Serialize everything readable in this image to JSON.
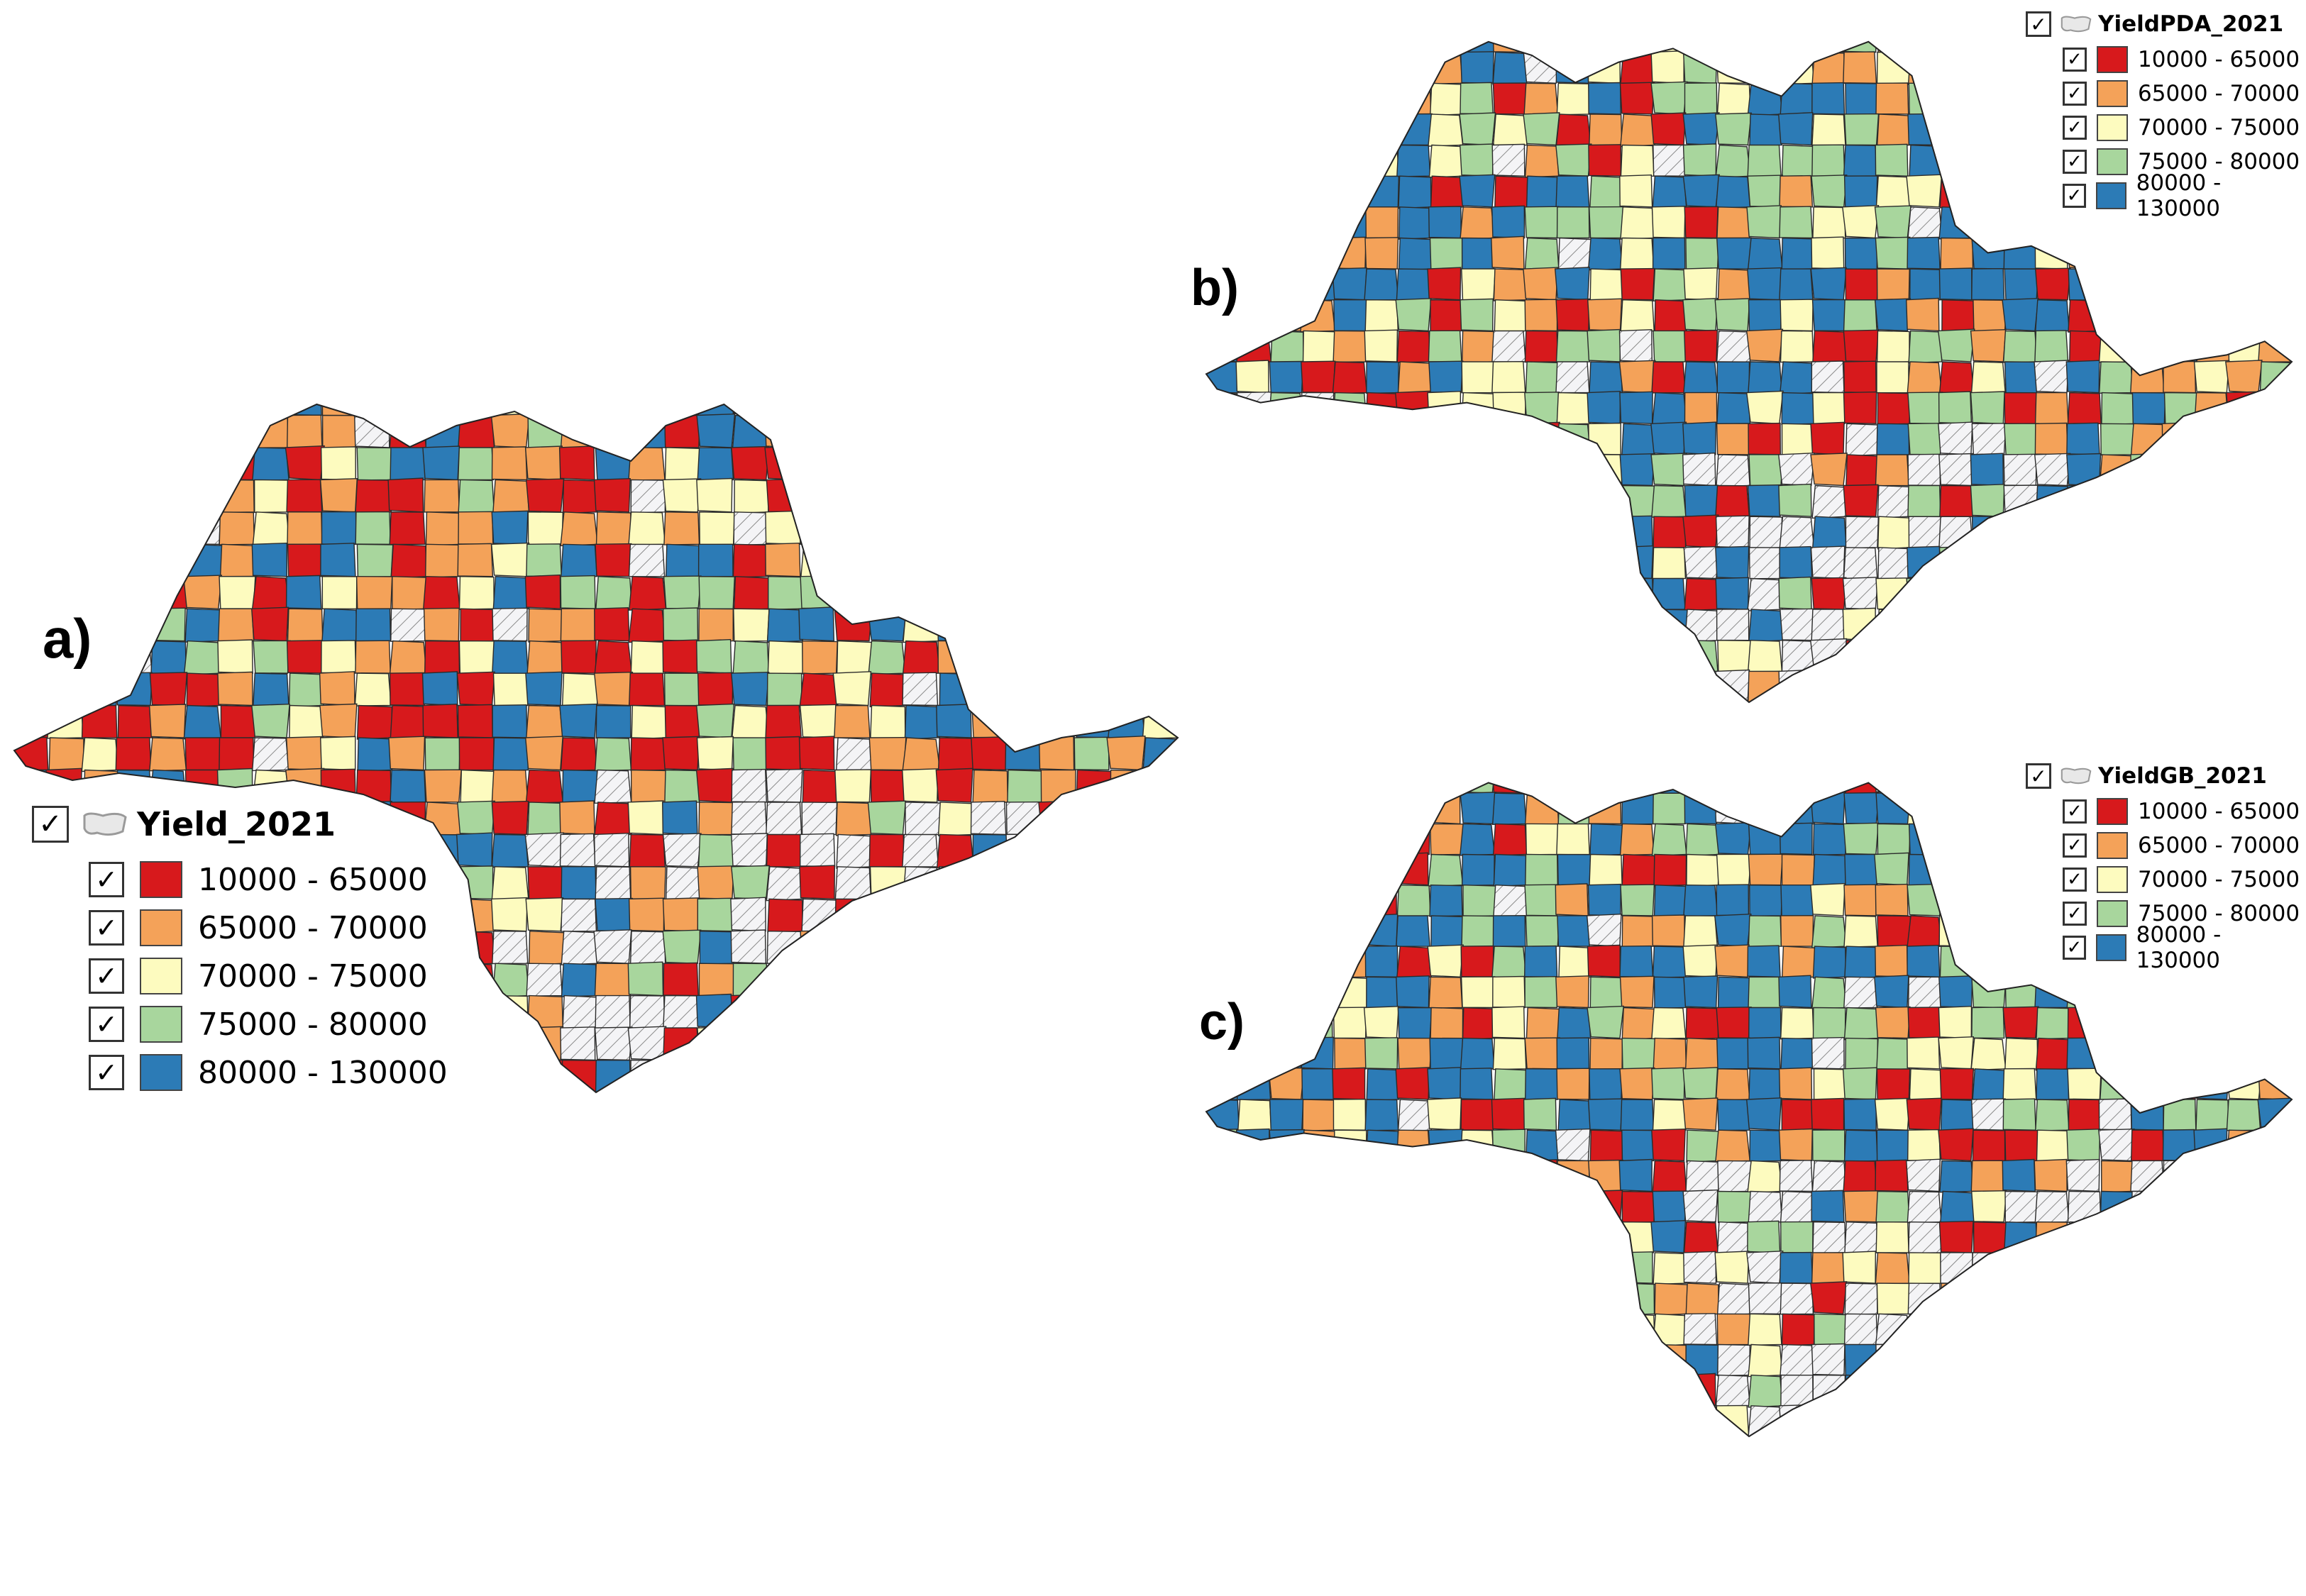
{
  "panels": [
    {
      "label": "a)",
      "layer": "Yield_2021",
      "checked": true
    },
    {
      "label": "b)",
      "layer": "YieldPDA_2021",
      "checked": true
    },
    {
      "label": "c)",
      "layer": "YieldGB_2021",
      "checked": true
    }
  ],
  "legend_classes": [
    {
      "range": "10000 - 65000",
      "color": "#d7191c"
    },
    {
      "range": "65000 - 70000",
      "color": "#f4a259"
    },
    {
      "range": "70000 - 75000",
      "color": "#fdfbbf"
    },
    {
      "range": "75000 - 80000",
      "color": "#a8d69d"
    },
    {
      "range": "80000 - 130000",
      "color": "#2c7bb6"
    }
  ],
  "no_data_fill": "hatched-white",
  "checkmark_glyph": "✓",
  "icons": {
    "layer": "polygon-layer-icon",
    "check": "checkbox-checked-icon"
  }
}
